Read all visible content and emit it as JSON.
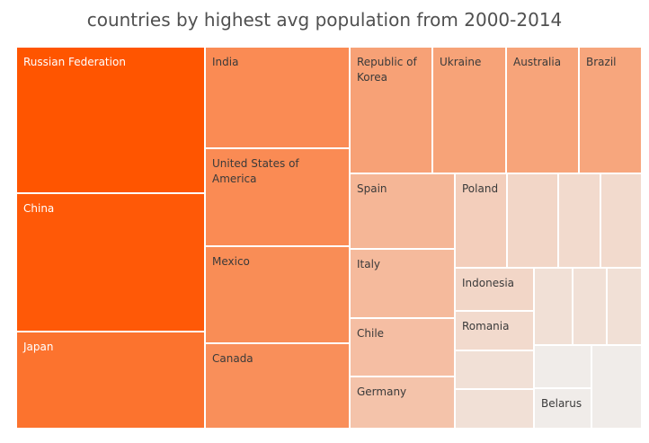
{
  "chart_data": {
    "type": "treemap",
    "title": "countries by highest avg population from 2000-2014",
    "colors": {
      "max": "#ff5500",
      "min": "#f0ece9",
      "label_dark": "#3a3a3a",
      "label_light": "#ffffff"
    },
    "tiles": [
      {
        "label": "Russian Federation",
        "value": 100
      },
      {
        "label": "China",
        "value": 95
      },
      {
        "label": "Japan",
        "value": 68
      },
      {
        "label": "India",
        "value": 46
      },
      {
        "label": "United States of America",
        "value": 46
      },
      {
        "label": "Mexico",
        "value": 45
      },
      {
        "label": "Canada",
        "value": 43
      },
      {
        "label": "Republic of Korea",
        "value": 30
      },
      {
        "label": "Ukraine",
        "value": 29
      },
      {
        "label": "Australia",
        "value": 28
      },
      {
        "label": "Brazil",
        "value": 27
      },
      {
        "label": "Spain",
        "value": 18
      },
      {
        "label": "Italy",
        "value": 16
      },
      {
        "label": "Chile",
        "value": 14
      },
      {
        "label": "Germany",
        "value": 12
      },
      {
        "label": "Poland",
        "value": 8
      },
      {
        "label": "",
        "value": 6
      },
      {
        "label": "",
        "value": 5
      },
      {
        "label": "",
        "value": 5
      },
      {
        "label": "Indonesia",
        "value": 6
      },
      {
        "label": "",
        "value": 4
      },
      {
        "label": "",
        "value": 4
      },
      {
        "label": "",
        "value": 4
      },
      {
        "label": "Romania",
        "value": 5
      },
      {
        "label": "",
        "value": 4
      },
      {
        "label": "",
        "value": 4
      },
      {
        "label": "",
        "value": 3
      },
      {
        "label": "Belarus",
        "value": 3
      },
      {
        "label": "",
        "value": 3
      }
    ]
  }
}
